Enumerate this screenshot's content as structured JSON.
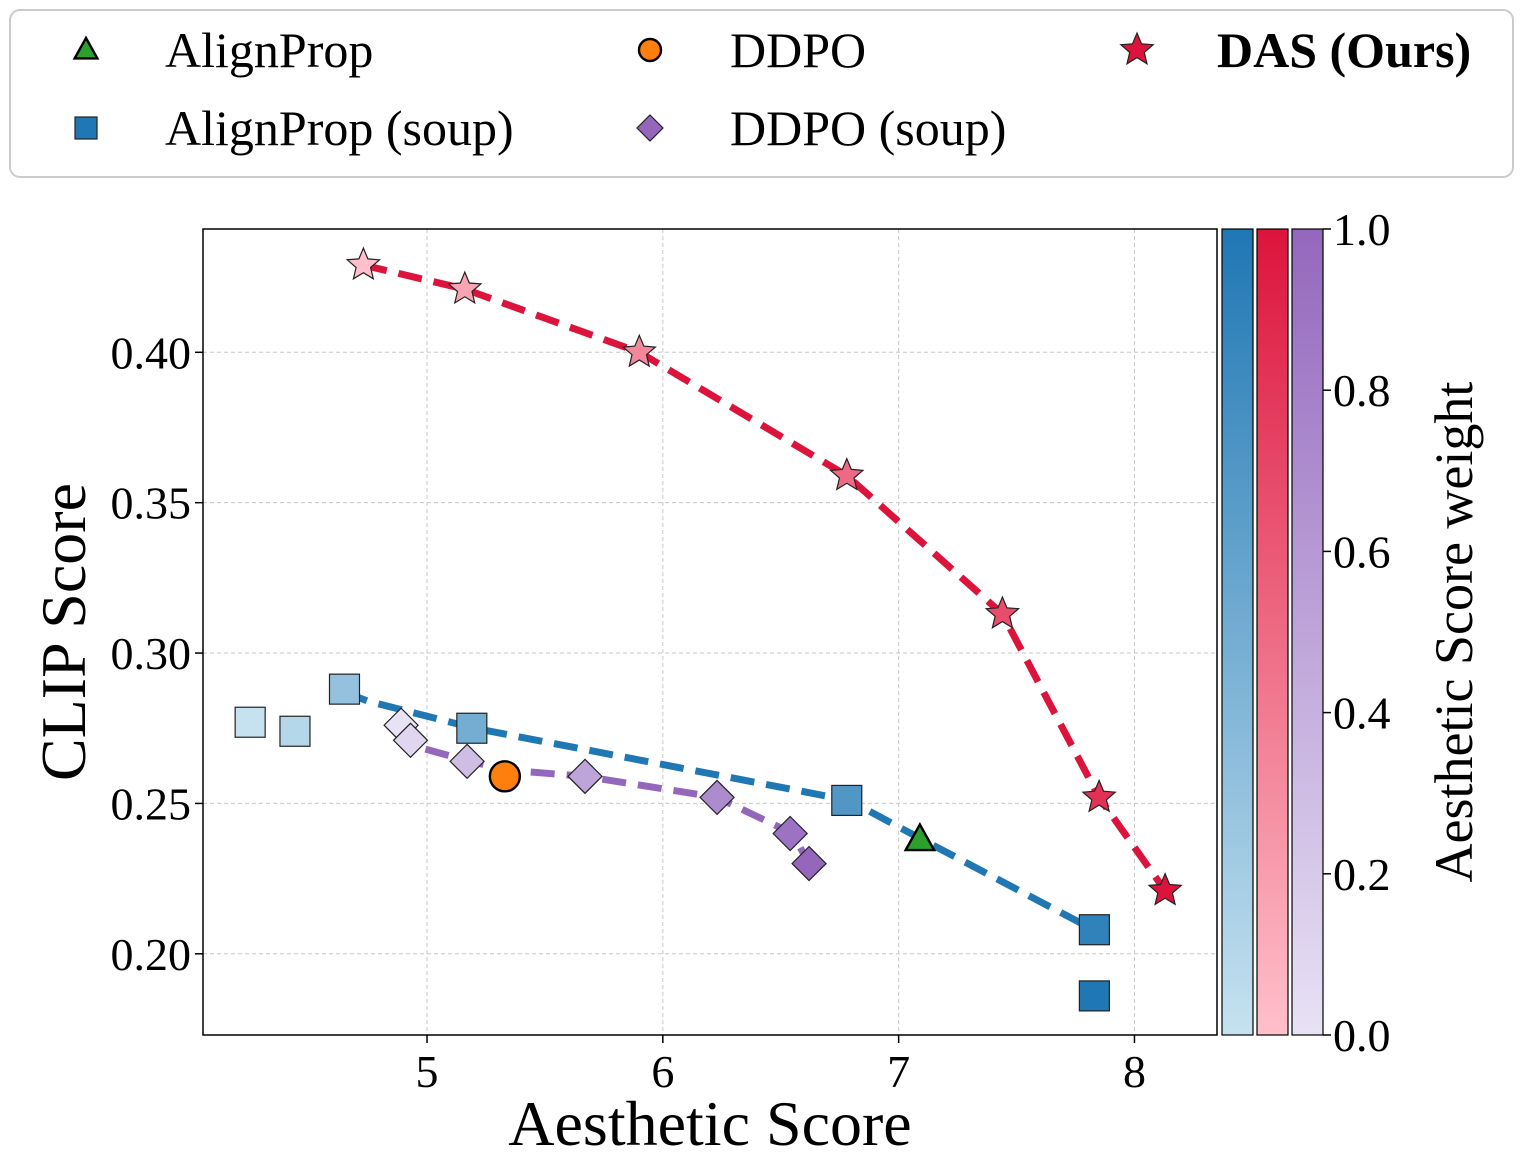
{
  "chart_data": {
    "type": "scatter",
    "title": "",
    "xlabel": "Aesthetic Score",
    "ylabel": "CLIP Score",
    "xlim": [
      4.05,
      8.35
    ],
    "ylim": [
      0.173,
      0.441
    ],
    "xticks": [
      5,
      6,
      7,
      8
    ],
    "xtick_labels": [
      "5",
      "6",
      "7",
      "8"
    ],
    "yticks": [
      0.2,
      0.25,
      0.3,
      0.35,
      0.4
    ],
    "ytick_labels": [
      "0.20",
      "0.25",
      "0.30",
      "0.35",
      "0.40"
    ],
    "grid": true,
    "legend_position": "top",
    "legend": [
      {
        "label": "AlignProp",
        "marker": "triangle",
        "color": "#2ca02c",
        "bold": false
      },
      {
        "label": "AlignProp (soup)",
        "marker": "square",
        "color": "#1f77b4",
        "bold": false
      },
      {
        "label": "DDPO",
        "marker": "circle",
        "color": "#ff7f0e",
        "bold": false
      },
      {
        "label": "DDPO (soup)",
        "marker": "diamond",
        "color": "#9467bd",
        "bold": false
      },
      {
        "label": "DAS (Ours)",
        "marker": "star",
        "color": "#dc143c",
        "bold": true
      }
    ],
    "colorbar": {
      "label": "Aesthetic Score weight",
      "range": [
        0.0,
        1.0
      ],
      "tick_labels": [
        "0.0",
        "0.2",
        "0.4",
        "0.6",
        "0.8",
        "1.0"
      ],
      "scales": [
        {
          "name": "AlignProp (soup)",
          "low": "#c6e2f0",
          "high": "#1f77b4"
        },
        {
          "name": "DAS (Ours)",
          "low": "#ffc0cb",
          "high": "#dc143c"
        },
        {
          "name": "DDPO (soup)",
          "low": "#e8e2f5",
          "high": "#9467bd"
        }
      ]
    },
    "series": [
      {
        "name": "AlignProp (soup)",
        "marker": "square",
        "line": {
          "x": [
            4.65,
            4.75,
            5.2,
            6.79,
            7.1,
            7.85
          ],
          "y": [
            0.287,
            0.284,
            0.275,
            0.251,
            0.238,
            0.207
          ]
        },
        "points": [
          {
            "x": 4.25,
            "y": 0.277,
            "w": 0.0
          },
          {
            "x": 4.44,
            "y": 0.274,
            "w": 0.1
          },
          {
            "x": 4.65,
            "y": 0.288,
            "w": 0.3
          },
          {
            "x": 5.19,
            "y": 0.275,
            "w": 0.5
          },
          {
            "x": 6.78,
            "y": 0.251,
            "w": 0.7
          },
          {
            "x": 7.83,
            "y": 0.208,
            "w": 0.9
          },
          {
            "x": 7.83,
            "y": 0.186,
            "w": 1.0
          }
        ]
      },
      {
        "name": "DAS (Ours)",
        "marker": "star",
        "line": {
          "x": [
            4.73,
            5.16,
            5.9,
            6.78,
            7.44,
            7.85,
            8.13
          ],
          "y": [
            0.429,
            0.421,
            0.4,
            0.359,
            0.313,
            0.252,
            0.221
          ]
        },
        "points": [
          {
            "x": 4.73,
            "y": 0.429,
            "w": 0.0
          },
          {
            "x": 5.16,
            "y": 0.421,
            "w": 0.17
          },
          {
            "x": 5.9,
            "y": 0.4,
            "w": 0.33
          },
          {
            "x": 6.78,
            "y": 0.359,
            "w": 0.5
          },
          {
            "x": 7.44,
            "y": 0.313,
            "w": 0.67
          },
          {
            "x": 7.85,
            "y": 0.252,
            "w": 0.83
          },
          {
            "x": 8.13,
            "y": 0.221,
            "w": 1.0
          }
        ]
      },
      {
        "name": "DDPO (soup)",
        "marker": "diamond",
        "line": {
          "x": [
            4.89,
            4.95,
            5.18,
            5.35,
            5.67,
            6.23,
            6.55,
            6.62
          ],
          "y": [
            0.276,
            0.269,
            0.264,
            0.261,
            0.259,
            0.252,
            0.24,
            0.23
          ]
        },
        "points": [
          {
            "x": 4.89,
            "y": 0.276,
            "w": 0.0
          },
          {
            "x": 4.93,
            "y": 0.271,
            "w": 0.1
          },
          {
            "x": 5.17,
            "y": 0.264,
            "w": 0.3
          },
          {
            "x": 5.67,
            "y": 0.259,
            "w": 0.5
          },
          {
            "x": 6.23,
            "y": 0.252,
            "w": 0.7
          },
          {
            "x": 6.54,
            "y": 0.24,
            "w": 0.9
          },
          {
            "x": 6.62,
            "y": 0.23,
            "w": 1.0
          }
        ]
      },
      {
        "name": "DDPO",
        "marker": "circle",
        "points": [
          {
            "x": 5.33,
            "y": 0.259
          }
        ]
      },
      {
        "name": "AlignProp",
        "marker": "triangle",
        "points": [
          {
            "x": 7.09,
            "y": 0.238
          }
        ]
      }
    ]
  }
}
